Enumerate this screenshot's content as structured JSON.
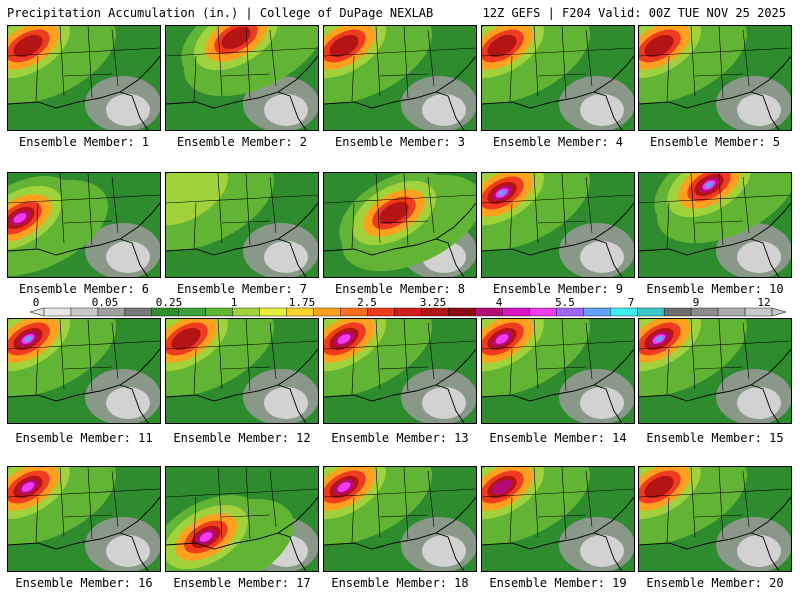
{
  "header": {
    "left": "Precipitation Accumulation (in.) | College of DuPage NEXLAB",
    "right": "12Z GEFS | F204 Valid: 00Z TUE NOV 25 2025"
  },
  "members": [
    {
      "label": "Ensemble Member: 1",
      "wet_region": "northwest",
      "max_in": 3.25
    },
    {
      "label": "Ensemble Member: 2",
      "wet_region": "north",
      "max_in": 3.25
    },
    {
      "label": "Ensemble Member: 3",
      "wet_region": "northwest",
      "max_in": 3.25
    },
    {
      "label": "Ensemble Member: 4",
      "wet_region": "northwest",
      "max_in": 3.25
    },
    {
      "label": "Ensemble Member: 5",
      "wet_region": "northwest",
      "max_in": 3.25
    },
    {
      "label": "Ensemble Member: 6",
      "wet_region": "west",
      "max_in": 5.5
    },
    {
      "label": "Ensemble Member: 7",
      "wet_region": "northwest",
      "max_in": 1.75
    },
    {
      "label": "Ensemble Member: 8",
      "wet_region": "central",
      "max_in": 3.25
    },
    {
      "label": "Ensemble Member: 9",
      "wet_region": "northwest",
      "max_in": 7
    },
    {
      "label": "Ensemble Member: 10",
      "wet_region": "north",
      "max_in": 7
    },
    {
      "label": "Ensemble Member: 11",
      "wet_region": "northwest",
      "max_in": 7
    },
    {
      "label": "Ensemble Member: 12",
      "wet_region": "northwest",
      "max_in": 3.25
    },
    {
      "label": "Ensemble Member: 13",
      "wet_region": "northwest",
      "max_in": 5.5
    },
    {
      "label": "Ensemble Member: 14",
      "wet_region": "northwest",
      "max_in": 5.5
    },
    {
      "label": "Ensemble Member: 15",
      "wet_region": "northwest",
      "max_in": 7
    },
    {
      "label": "Ensemble Member: 16",
      "wet_region": "northwest",
      "max_in": 5.5
    },
    {
      "label": "Ensemble Member: 17",
      "wet_region": "southwest",
      "max_in": 5.5
    },
    {
      "label": "Ensemble Member: 18",
      "wet_region": "northwest",
      "max_in": 5.5
    },
    {
      "label": "Ensemble Member: 19",
      "wet_region": "northwest",
      "max_in": 4
    },
    {
      "label": "Ensemble Member: 20",
      "wet_region": "northwest",
      "max_in": 3.25
    }
  ],
  "color_scale": {
    "tick_labels": [
      "0",
      "0.05",
      "0.25",
      "1",
      "1.75",
      "2.5",
      "3.25",
      "4",
      "5.5",
      "7",
      "9",
      "12"
    ],
    "colors": [
      "#e6e6e6",
      "#c8c8c8",
      "#a0a0a0",
      "#787878",
      "#2f8f2f",
      "#3ca03c",
      "#62b434",
      "#a0d23c",
      "#e6f03c",
      "#ffd22a",
      "#ffa01e",
      "#ff6e1e",
      "#f03c1e",
      "#d21e1e",
      "#b41414",
      "#8c0a14",
      "#b40a78",
      "#dc14c8",
      "#f03cf0",
      "#a064ff",
      "#64a0ff",
      "#3cf0f0",
      "#3cc8c8",
      "#6e6e6e",
      "#8c8c8c",
      "#aaaaaa",
      "#c8c8c8"
    ]
  }
}
